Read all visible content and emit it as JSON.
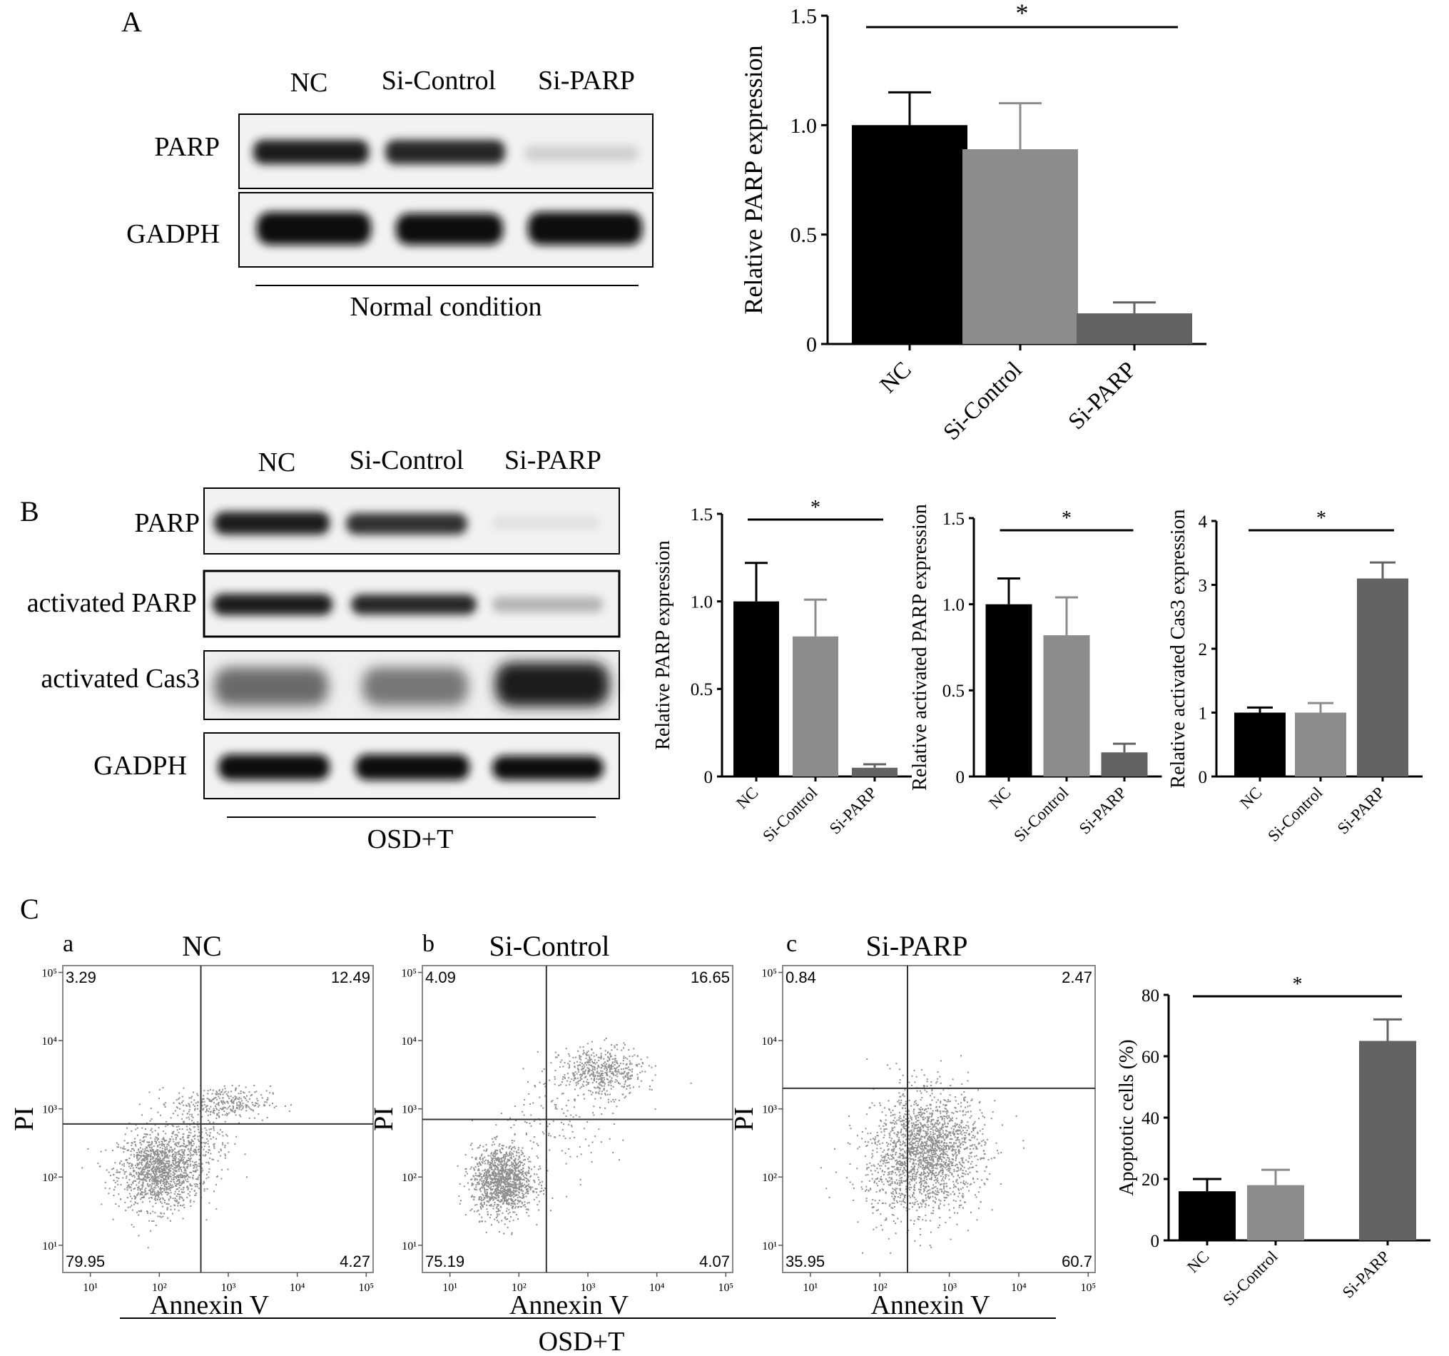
{
  "panel_a": {
    "letter": "A",
    "lanes": [
      "NC",
      "Si-Control",
      "Si-PARP"
    ],
    "rows": [
      {
        "label": "PARP",
        "intensity": [
          1.0,
          0.9,
          0.12
        ]
      },
      {
        "label": "GADPH",
        "intensity": [
          1.0,
          1.0,
          1.0
        ]
      }
    ],
    "condition": "Normal condition"
  },
  "panel_b": {
    "letter": "B",
    "lanes": [
      "NC",
      "Si-Control",
      "Si-PARP"
    ],
    "rows": [
      {
        "label": "PARP",
        "intensity": [
          1.0,
          0.8,
          0.08
        ]
      },
      {
        "label": "activated PARP",
        "intensity": [
          1.0,
          0.85,
          0.2
        ]
      },
      {
        "label": "activated Cas3",
        "intensity": [
          0.6,
          0.6,
          1.0
        ]
      },
      {
        "label": "GADPH",
        "intensity": [
          1.0,
          1.0,
          1.0
        ]
      }
    ],
    "condition": "OSD+T"
  },
  "panel_c": {
    "letter": "C",
    "condition": "OSD+T",
    "plots": [
      {
        "sub": "a",
        "title": "NC",
        "quadrants": {
          "ul": "3.29",
          "ur": "12.49",
          "ll": "79.95",
          "lr": "4.27"
        },
        "xaxis": "Annexin V",
        "yaxis": "PI",
        "gate": [
          400,
          600
        ]
      },
      {
        "sub": "b",
        "title": "Si-Control",
        "quadrants": {
          "ul": "4.09",
          "ur": "16.65",
          "ll": "75.19",
          "lr": "4.07"
        },
        "xaxis": "Annexin V",
        "yaxis": "PI",
        "gate": [
          250,
          700
        ]
      },
      {
        "sub": "c",
        "title": "Si-PARP",
        "quadrants": {
          "ul": "0.84",
          "ur": "2.47",
          "ll": "35.95",
          "lr": "60.7"
        },
        "xaxis": "Annexin V",
        "yaxis": "PI",
        "gate": [
          250,
          2000
        ]
      }
    ],
    "flow_ticks": [
      "10¹",
      "10²",
      "10³",
      "10⁴",
      "10⁵"
    ]
  },
  "colors": {
    "nc": "#000000",
    "si_control": "#8c8c8c",
    "si_parp": "#636363",
    "dots": "#8e8e8e"
  },
  "chart_data": [
    {
      "type": "bar",
      "panel": "A",
      "categories": [
        "NC",
        "Si-Control",
        "Si-PARP"
      ],
      "values": [
        1.0,
        0.89,
        0.14
      ],
      "errors": [
        0.15,
        0.21,
        0.05
      ],
      "ylabel": "Relative PARP expression",
      "ylim": [
        0,
        1.5
      ],
      "yticks": [
        "0",
        "0.5",
        "1.0",
        "1.5"
      ],
      "significance": {
        "from": 0,
        "to": 2,
        "label": "*"
      }
    },
    {
      "type": "bar",
      "panel": "B",
      "categories": [
        "NC",
        "Si-Control",
        "Si-PARP"
      ],
      "values": [
        1.0,
        0.8,
        0.05
      ],
      "errors": [
        0.22,
        0.21,
        0.02
      ],
      "ylabel": "Relative PARP expression",
      "ylim": [
        0,
        1.5
      ],
      "yticks": [
        "0",
        "0.5",
        "1.0",
        "1.5"
      ],
      "significance": {
        "from": 0,
        "to": 2,
        "label": "*"
      }
    },
    {
      "type": "bar",
      "panel": "B",
      "categories": [
        "NC",
        "Si-Control",
        "Si-PARP"
      ],
      "values": [
        1.0,
        0.82,
        0.14
      ],
      "errors": [
        0.15,
        0.22,
        0.05
      ],
      "ylabel": "Relative activated PARP expression",
      "ylim": [
        0,
        1.5
      ],
      "yticks": [
        "0",
        "0.5",
        "1.0",
        "1.5"
      ],
      "significance": {
        "from": 0,
        "to": 2,
        "label": "*"
      }
    },
    {
      "type": "bar",
      "panel": "B",
      "categories": [
        "NC",
        "Si-Control",
        "Si-PARP"
      ],
      "values": [
        1.0,
        1.0,
        3.1
      ],
      "errors": [
        0.08,
        0.15,
        0.25
      ],
      "ylabel": "Relative activated Cas3 expression",
      "ylim": [
        0,
        4
      ],
      "yticks": [
        "0",
        "1",
        "2",
        "3",
        "4"
      ],
      "significance": {
        "from": 0,
        "to": 2,
        "label": "*"
      }
    },
    {
      "type": "bar",
      "panel": "C",
      "categories": [
        "NC",
        "Si-Control",
        "Si-PARP"
      ],
      "values": [
        16,
        18,
        65
      ],
      "errors": [
        4,
        5,
        7
      ],
      "ylabel": "Apoptotic cells (%)",
      "ylim": [
        0,
        80
      ],
      "yticks": [
        "0",
        "20",
        "40",
        "60",
        "80"
      ],
      "significance": {
        "from": 0,
        "to": 2,
        "label": "*"
      }
    }
  ]
}
